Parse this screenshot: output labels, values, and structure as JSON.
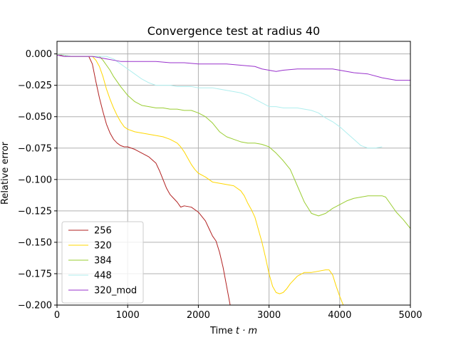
{
  "chart_data": {
    "type": "line",
    "title": "Convergence test at radius 40",
    "xlabel_prefix": "Time ",
    "xlabel_var": "t · m",
    "ylabel": "Relative error",
    "xlim": [
      0,
      5000
    ],
    "ylim": [
      -0.2,
      0.01
    ],
    "grid": true,
    "legend_position": "lower-left",
    "x_ticks": [
      0,
      1000,
      2000,
      3000,
      4000,
      5000
    ],
    "x_tick_labels": [
      "0",
      "1000",
      "2000",
      "3000",
      "4000",
      "5000"
    ],
    "y_ticks": [
      0.0,
      -0.025,
      -0.05,
      -0.075,
      -0.1,
      -0.125,
      -0.15,
      -0.175,
      -0.2
    ],
    "y_tick_labels": [
      "0.000",
      "−0.025",
      "−0.050",
      "−0.075",
      "−0.100",
      "−0.125",
      "−0.150",
      "−0.175",
      "−0.200"
    ],
    "series": [
      {
        "name": "256",
        "color": "#b22222",
        "points": [
          [
            0,
            0.0
          ],
          [
            100,
            -0.002
          ],
          [
            200,
            -0.002
          ],
          [
            300,
            -0.002
          ],
          [
            400,
            -0.002
          ],
          [
            450,
            -0.002
          ],
          [
            500,
            -0.008
          ],
          [
            550,
            -0.022
          ],
          [
            600,
            -0.035
          ],
          [
            650,
            -0.046
          ],
          [
            700,
            -0.056
          ],
          [
            750,
            -0.063
          ],
          [
            800,
            -0.068
          ],
          [
            850,
            -0.071
          ],
          [
            900,
            -0.073
          ],
          [
            950,
            -0.074
          ],
          [
            1000,
            -0.074
          ],
          [
            1100,
            -0.076
          ],
          [
            1200,
            -0.079
          ],
          [
            1300,
            -0.082
          ],
          [
            1400,
            -0.087
          ],
          [
            1450,
            -0.093
          ],
          [
            1500,
            -0.1
          ],
          [
            1550,
            -0.107
          ],
          [
            1600,
            -0.112
          ],
          [
            1650,
            -0.115
          ],
          [
            1700,
            -0.118
          ],
          [
            1750,
            -0.122
          ],
          [
            1800,
            -0.121
          ],
          [
            1900,
            -0.122
          ],
          [
            2000,
            -0.126
          ],
          [
            2100,
            -0.133
          ],
          [
            2150,
            -0.139
          ],
          [
            2200,
            -0.145
          ],
          [
            2250,
            -0.149
          ],
          [
            2300,
            -0.158
          ],
          [
            2350,
            -0.17
          ],
          [
            2400,
            -0.185
          ],
          [
            2450,
            -0.2
          ]
        ]
      },
      {
        "name": "320",
        "color": "#ffd700",
        "points": [
          [
            0,
            0.0
          ],
          [
            200,
            -0.002
          ],
          [
            400,
            -0.002
          ],
          [
            500,
            -0.002
          ],
          [
            550,
            -0.005
          ],
          [
            600,
            -0.01
          ],
          [
            650,
            -0.018
          ],
          [
            700,
            -0.028
          ],
          [
            750,
            -0.036
          ],
          [
            800,
            -0.043
          ],
          [
            850,
            -0.049
          ],
          [
            900,
            -0.054
          ],
          [
            950,
            -0.058
          ],
          [
            1000,
            -0.06
          ],
          [
            1100,
            -0.062
          ],
          [
            1200,
            -0.063
          ],
          [
            1300,
            -0.064
          ],
          [
            1400,
            -0.065
          ],
          [
            1500,
            -0.066
          ],
          [
            1600,
            -0.068
          ],
          [
            1700,
            -0.071
          ],
          [
            1750,
            -0.074
          ],
          [
            1800,
            -0.078
          ],
          [
            1850,
            -0.083
          ],
          [
            1900,
            -0.088
          ],
          [
            1950,
            -0.092
          ],
          [
            2000,
            -0.095
          ],
          [
            2100,
            -0.098
          ],
          [
            2200,
            -0.102
          ],
          [
            2300,
            -0.103
          ],
          [
            2400,
            -0.104
          ],
          [
            2500,
            -0.105
          ],
          [
            2600,
            -0.109
          ],
          [
            2650,
            -0.113
          ],
          [
            2700,
            -0.119
          ],
          [
            2750,
            -0.124
          ],
          [
            2800,
            -0.13
          ],
          [
            2850,
            -0.14
          ],
          [
            2900,
            -0.15
          ],
          [
            2950,
            -0.162
          ],
          [
            3000,
            -0.175
          ],
          [
            3050,
            -0.185
          ],
          [
            3100,
            -0.19
          ],
          [
            3150,
            -0.191
          ],
          [
            3200,
            -0.19
          ],
          [
            3250,
            -0.187
          ],
          [
            3300,
            -0.183
          ],
          [
            3400,
            -0.177
          ],
          [
            3500,
            -0.174
          ],
          [
            3600,
            -0.174
          ],
          [
            3700,
            -0.173
          ],
          [
            3800,
            -0.172
          ],
          [
            3850,
            -0.172
          ],
          [
            3900,
            -0.176
          ],
          [
            3950,
            -0.185
          ],
          [
            4000,
            -0.193
          ],
          [
            4050,
            -0.2
          ]
        ]
      },
      {
        "name": "384",
        "color": "#9acd32",
        "points": [
          [
            0,
            0.0
          ],
          [
            200,
            -0.002
          ],
          [
            400,
            -0.002
          ],
          [
            600,
            -0.002
          ],
          [
            650,
            -0.005
          ],
          [
            700,
            -0.009
          ],
          [
            750,
            -0.013
          ],
          [
            800,
            -0.018
          ],
          [
            900,
            -0.026
          ],
          [
            1000,
            -0.033
          ],
          [
            1100,
            -0.038
          ],
          [
            1200,
            -0.041
          ],
          [
            1300,
            -0.042
          ],
          [
            1400,
            -0.043
          ],
          [
            1500,
            -0.043
          ],
          [
            1600,
            -0.044
          ],
          [
            1700,
            -0.044
          ],
          [
            1800,
            -0.045
          ],
          [
            1900,
            -0.045
          ],
          [
            2000,
            -0.047
          ],
          [
            2100,
            -0.05
          ],
          [
            2200,
            -0.055
          ],
          [
            2300,
            -0.062
          ],
          [
            2400,
            -0.066
          ],
          [
            2500,
            -0.068
          ],
          [
            2600,
            -0.07
          ],
          [
            2700,
            -0.071
          ],
          [
            2800,
            -0.071
          ],
          [
            2900,
            -0.072
          ],
          [
            3000,
            -0.074
          ],
          [
            3100,
            -0.079
          ],
          [
            3200,
            -0.085
          ],
          [
            3300,
            -0.092
          ],
          [
            3400,
            -0.105
          ],
          [
            3500,
            -0.118
          ],
          [
            3600,
            -0.127
          ],
          [
            3700,
            -0.129
          ],
          [
            3800,
            -0.127
          ],
          [
            3900,
            -0.123
          ],
          [
            4000,
            -0.12
          ],
          [
            4100,
            -0.117
          ],
          [
            4200,
            -0.115
          ],
          [
            4300,
            -0.114
          ],
          [
            4400,
            -0.113
          ],
          [
            4500,
            -0.113
          ],
          [
            4600,
            -0.113
          ],
          [
            4650,
            -0.114
          ],
          [
            4700,
            -0.118
          ],
          [
            4800,
            -0.126
          ],
          [
            4900,
            -0.132
          ],
          [
            5000,
            -0.139
          ]
        ]
      },
      {
        "name": "448",
        "color": "#afeeee",
        "points": [
          [
            0,
            0.0
          ],
          [
            200,
            -0.002
          ],
          [
            400,
            -0.002
          ],
          [
            600,
            -0.002
          ],
          [
            700,
            -0.002
          ],
          [
            800,
            -0.004
          ],
          [
            900,
            -0.008
          ],
          [
            1000,
            -0.012
          ],
          [
            1100,
            -0.016
          ],
          [
            1200,
            -0.02
          ],
          [
            1300,
            -0.023
          ],
          [
            1400,
            -0.025
          ],
          [
            1500,
            -0.025
          ],
          [
            1600,
            -0.025
          ],
          [
            1700,
            -0.026
          ],
          [
            1800,
            -0.026
          ],
          [
            1900,
            -0.026
          ],
          [
            2000,
            -0.027
          ],
          [
            2100,
            -0.027
          ],
          [
            2200,
            -0.027
          ],
          [
            2300,
            -0.028
          ],
          [
            2400,
            -0.029
          ],
          [
            2500,
            -0.03
          ],
          [
            2600,
            -0.031
          ],
          [
            2700,
            -0.033
          ],
          [
            2800,
            -0.036
          ],
          [
            2900,
            -0.039
          ],
          [
            3000,
            -0.042
          ],
          [
            3100,
            -0.042
          ],
          [
            3200,
            -0.043
          ],
          [
            3300,
            -0.043
          ],
          [
            3400,
            -0.043
          ],
          [
            3500,
            -0.044
          ],
          [
            3600,
            -0.045
          ],
          [
            3700,
            -0.047
          ],
          [
            3800,
            -0.051
          ],
          [
            3900,
            -0.054
          ],
          [
            4000,
            -0.058
          ],
          [
            4100,
            -0.063
          ],
          [
            4200,
            -0.068
          ],
          [
            4300,
            -0.073
          ],
          [
            4400,
            -0.075
          ],
          [
            4500,
            -0.075
          ],
          [
            4600,
            -0.074
          ]
        ]
      },
      {
        "name": "320_mod",
        "color": "#9932cc",
        "points": [
          [
            0,
            -0.001
          ],
          [
            100,
            -0.002
          ],
          [
            300,
            -0.002
          ],
          [
            500,
            -0.002
          ],
          [
            600,
            -0.003
          ],
          [
            700,
            -0.004
          ],
          [
            800,
            -0.005
          ],
          [
            900,
            -0.006
          ],
          [
            1000,
            -0.006
          ],
          [
            1200,
            -0.006
          ],
          [
            1400,
            -0.006
          ],
          [
            1600,
            -0.007
          ],
          [
            1800,
            -0.007
          ],
          [
            2000,
            -0.008
          ],
          [
            2200,
            -0.008
          ],
          [
            2400,
            -0.008
          ],
          [
            2600,
            -0.009
          ],
          [
            2800,
            -0.01
          ],
          [
            2900,
            -0.012
          ],
          [
            3000,
            -0.013
          ],
          [
            3100,
            -0.014
          ],
          [
            3200,
            -0.013
          ],
          [
            3400,
            -0.012
          ],
          [
            3600,
            -0.012
          ],
          [
            3800,
            -0.012
          ],
          [
            3900,
            -0.012
          ],
          [
            4000,
            -0.013
          ],
          [
            4200,
            -0.015
          ],
          [
            4400,
            -0.016
          ],
          [
            4600,
            -0.019
          ],
          [
            4800,
            -0.021
          ],
          [
            5000,
            -0.021
          ]
        ]
      }
    ]
  }
}
